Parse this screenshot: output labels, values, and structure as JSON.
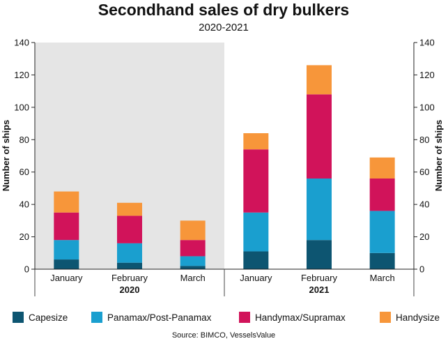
{
  "chart_data": {
    "type": "bar",
    "stacked": true,
    "title": "Secondhand sales of dry bulkers",
    "subtitle": "2020-2021",
    "ylabel": "Number of ships",
    "ylabel_right": "Number of ships",
    "ylim": [
      0,
      140
    ],
    "yticks": [
      0,
      20,
      40,
      60,
      80,
      100,
      120,
      140
    ],
    "categories": [
      "January",
      "February",
      "March",
      "January",
      "February",
      "March"
    ],
    "groups": [
      {
        "label": "2020",
        "shaded": true,
        "shade_color": "#e5e5e5"
      },
      {
        "label": "2021",
        "shaded": false
      }
    ],
    "series": [
      {
        "name": "Capesize",
        "color": "#0d5571",
        "values": [
          6,
          4,
          2,
          11,
          18,
          10
        ]
      },
      {
        "name": "Panamax/Post-Panamax",
        "color": "#1a9fcf",
        "values": [
          12,
          12,
          6,
          24,
          38,
          26
        ]
      },
      {
        "name": "Handymax/Supramax",
        "color": "#d1135a",
        "values": [
          17,
          17,
          10,
          39,
          52,
          20
        ]
      },
      {
        "name": "Handysize",
        "color": "#f7963a",
        "values": [
          13,
          8,
          12,
          10,
          18,
          13
        ]
      }
    ],
    "legend_position": "bottom",
    "grid": false,
    "source": "Source: BIMCO, VesselsValue"
  }
}
